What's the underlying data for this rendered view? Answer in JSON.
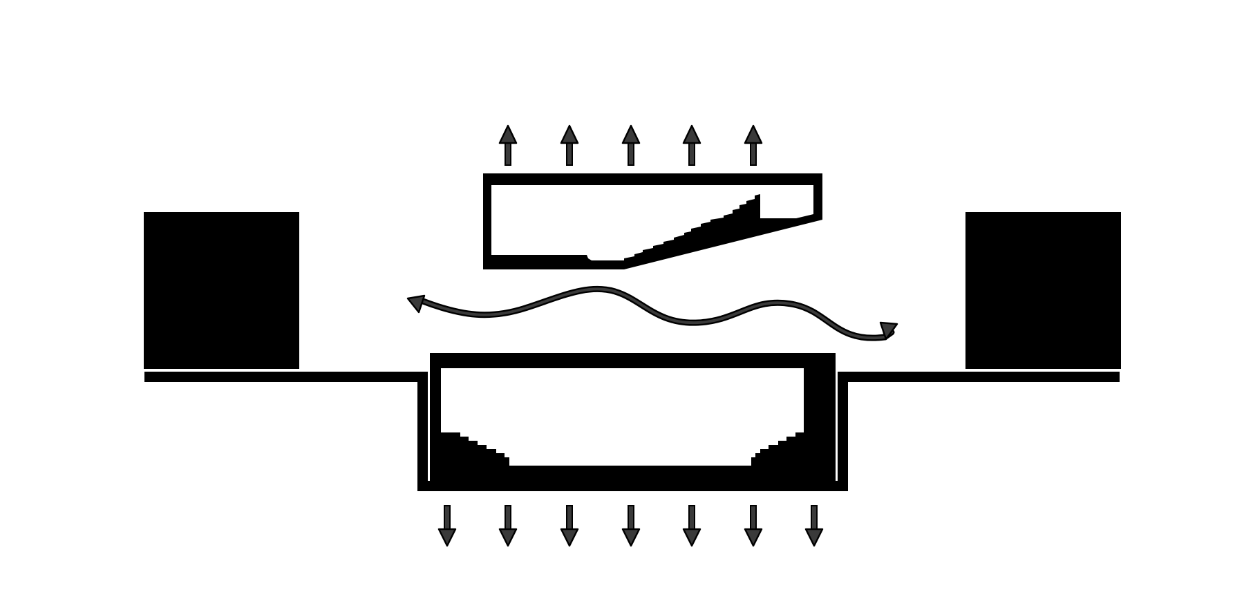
{
  "diagram": {
    "type": "architectural-section-diagram",
    "colors": {
      "background": "#ffffff",
      "ink": "#000000",
      "arrow_fill": "#3a3a3a"
    },
    "up_arrow_count": 5,
    "down_arrow_count": 7,
    "wave_arrow_direction": "bidirectional",
    "icons": [
      "up-arrow-icon",
      "down-arrow-icon",
      "bidirectional-wave-arrow-icon"
    ]
  }
}
